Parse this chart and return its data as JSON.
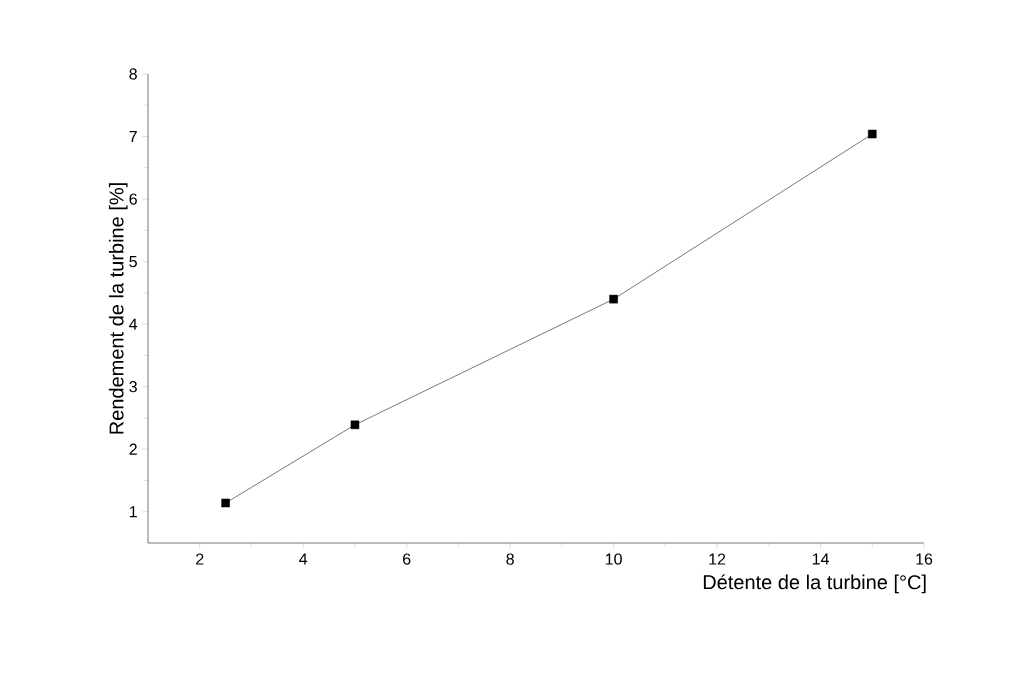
{
  "chart_data": {
    "type": "line",
    "xlabel": "Détente de la turbine [°C]",
    "ylabel": "Rendement de la turbine [%]",
    "x": [
      2.5,
      5,
      10,
      15
    ],
    "series": [
      {
        "color": "#000000",
        "values": [
          1.14,
          2.39,
          4.4,
          7.04
        ]
      }
    ],
    "xlim": [
      1,
      16
    ],
    "ylim": [
      0.5,
      8
    ],
    "xticks": [
      2,
      4,
      6,
      8,
      10,
      12,
      14,
      16
    ],
    "yticks": [
      1,
      2,
      3,
      4,
      5,
      6,
      7,
      8
    ],
    "marker": "square",
    "line_style": "solid"
  }
}
